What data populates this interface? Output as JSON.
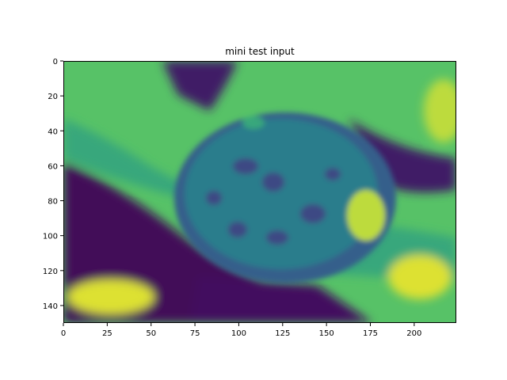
{
  "chart_data": {
    "type": "heatmap",
    "title": "mini test input",
    "xlabel": "",
    "ylabel": "",
    "xlim": [
      0,
      224
    ],
    "ylim": [
      150,
      0
    ],
    "x_ticks": [
      0,
      25,
      50,
      75,
      100,
      125,
      150,
      175,
      200
    ],
    "y_ticks": [
      0,
      20,
      40,
      60,
      80,
      100,
      120,
      140
    ],
    "x_tick_labels": [
      "0",
      "25",
      "50",
      "75",
      "100",
      "125",
      "150",
      "175",
      "200"
    ],
    "y_tick_labels": [
      "0",
      "20",
      "40",
      "60",
      "80",
      "100",
      "120",
      "140"
    ],
    "colormap": "viridis",
    "colormap_colors": [
      "#440154",
      "#3b528b",
      "#21918c",
      "#5ec962",
      "#fde725"
    ],
    "grid": false,
    "image_size": {
      "width": 224,
      "height": 150
    },
    "regions": [
      {
        "name": "background-bright",
        "value": 0.72
      },
      {
        "name": "dark-stem-left",
        "value": 0.02
      },
      {
        "name": "dark-band-bottom",
        "value": 0.05
      },
      {
        "name": "dark-band-top",
        "value": 0.08
      },
      {
        "name": "center-disk",
        "value": 0.42
      },
      {
        "name": "disk-rim",
        "value": 0.3
      },
      {
        "name": "disk-dark-spots",
        "value": 0.22
      },
      {
        "name": "bright-patch-right",
        "value": 0.9
      },
      {
        "name": "bright-petal-bottom",
        "value": 0.95
      },
      {
        "name": "stripe-top",
        "value": 0.6
      }
    ]
  }
}
